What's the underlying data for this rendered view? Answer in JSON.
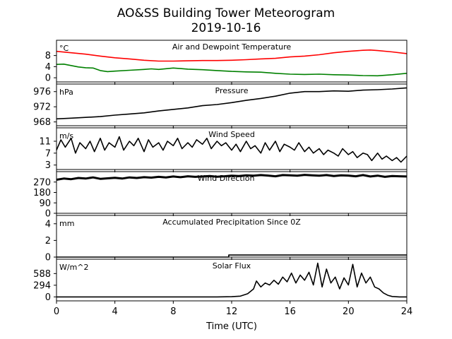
{
  "figure": {
    "title_line1": "AO&SS Building Tower Meteorogram",
    "title_line2": "2019-10-16",
    "xlabel": "Time (UTC)"
  },
  "chart_data": [
    {
      "type": "line",
      "title": "Air and Dewpoint Temperature",
      "unit": "°C",
      "ylim": [
        -1.5,
        13.5
      ],
      "yticks": [
        0,
        4,
        8
      ],
      "xlim": [
        0,
        24
      ],
      "xticks": [
        0,
        4,
        8,
        12,
        16,
        20,
        24
      ],
      "series": [
        {
          "color": "#ff0000",
          "x": [
            0,
            1,
            2,
            3,
            4,
            5,
            6,
            7,
            8,
            9,
            10,
            11,
            12,
            13,
            14,
            15,
            16,
            17,
            18,
            19,
            20,
            21,
            21.5,
            22,
            23,
            24
          ],
          "y": [
            9.5,
            9.0,
            8.5,
            7.8,
            7.2,
            6.8,
            6.3,
            6.0,
            6.0,
            6.1,
            6.2,
            6.2,
            6.3,
            6.5,
            6.8,
            7.0,
            7.5,
            7.8,
            8.3,
            9.0,
            9.5,
            9.9,
            10.0,
            9.8,
            9.3,
            8.7
          ]
        },
        {
          "color": "#008000",
          "x": [
            0,
            0.5,
            1,
            1.5,
            2,
            2.5,
            3,
            3.5,
            4,
            5,
            6,
            6.5,
            7,
            8,
            9,
            10,
            11,
            12,
            13,
            14,
            15,
            16,
            17,
            18,
            19,
            20,
            21,
            22,
            23,
            24
          ],
          "y": [
            4.8,
            4.9,
            4.4,
            3.9,
            3.6,
            3.5,
            2.6,
            2.2,
            2.4,
            2.7,
            3.0,
            3.2,
            3.0,
            3.5,
            3.1,
            2.9,
            2.6,
            2.3,
            2.1,
            2.0,
            1.6,
            1.3,
            1.2,
            1.3,
            1.1,
            1.0,
            0.8,
            0.7,
            1.1,
            1.6
          ]
        }
      ]
    },
    {
      "type": "line",
      "title": "Pressure",
      "unit": "hPa",
      "ylim": [
        967,
        978
      ],
      "yticks": [
        968,
        972,
        976
      ],
      "xlim": [
        0,
        24
      ],
      "series": [
        {
          "color": "#000000",
          "x": [
            0,
            1,
            2,
            3,
            4,
            5,
            6,
            7,
            8,
            9,
            10,
            11,
            12,
            13,
            14,
            15,
            16,
            17,
            18,
            19,
            20,
            21,
            22,
            23,
            24
          ],
          "y": [
            968.8,
            969.0,
            969.2,
            969.4,
            969.8,
            970.1,
            970.4,
            970.9,
            971.3,
            971.7,
            972.3,
            972.6,
            973.1,
            973.7,
            974.2,
            974.8,
            975.6,
            976.0,
            976.0,
            976.2,
            976.1,
            976.4,
            976.5,
            976.7,
            977.0
          ]
        }
      ]
    },
    {
      "type": "line",
      "title": "Wind Speed",
      "unit": "m/s",
      "ylim": [
        1.5,
        15.5
      ],
      "yticks": [
        3,
        7,
        11
      ],
      "xlim": [
        0,
        24
      ],
      "series": [
        {
          "color": "#000000",
          "x": [
            0,
            0.3,
            0.6,
            1,
            1.3,
            1.6,
            2,
            2.3,
            2.6,
            3,
            3.3,
            3.6,
            4,
            4.3,
            4.6,
            5,
            5.3,
            5.6,
            6,
            6.3,
            6.6,
            7,
            7.3,
            7.6,
            8,
            8.3,
            8.6,
            9,
            9.3,
            9.6,
            10,
            10.3,
            10.6,
            11,
            11.3,
            11.6,
            12,
            12.3,
            12.6,
            13,
            13.3,
            13.6,
            14,
            14.3,
            14.6,
            15,
            15.3,
            15.6,
            16,
            16.3,
            16.6,
            17,
            17.3,
            17.6,
            18,
            18.3,
            18.6,
            19,
            19.3,
            19.6,
            20,
            20.3,
            20.6,
            21,
            21.3,
            21.6,
            22,
            22.3,
            22.6,
            23,
            23.3,
            23.6,
            24
          ],
          "y": [
            8,
            11.5,
            9,
            12,
            7,
            10.5,
            8.5,
            11,
            7.5,
            12,
            8,
            10.5,
            9,
            12.5,
            8,
            11,
            9.5,
            12,
            7.5,
            11.5,
            9,
            10.5,
            8,
            11,
            9.5,
            12,
            8.5,
            10.5,
            9,
            11.5,
            10,
            12,
            8.5,
            11,
            9.5,
            10.5,
            8,
            10,
            7.5,
            11,
            8.5,
            9.5,
            7,
            10.5,
            8,
            11,
            7.5,
            10,
            9,
            8,
            10.5,
            7.5,
            9,
            7,
            8.5,
            6.5,
            8,
            7,
            6,
            8.5,
            6.5,
            7.5,
            5.5,
            7,
            6.5,
            4.5,
            7,
            5,
            6,
            4.5,
            5.5,
            4,
            6
          ]
        }
      ]
    },
    {
      "type": "line",
      "title": "Wind Direction",
      "unit": "",
      "ylim": [
        0,
        360
      ],
      "yticks": [
        0,
        90,
        180,
        270
      ],
      "xlim": [
        0,
        24
      ],
      "series": [
        {
          "color": "#000000",
          "x": [
            0,
            0.5,
            1,
            1.5,
            2,
            2.5,
            3,
            3.5,
            4,
            4.5,
            5,
            5.5,
            6,
            6.5,
            7,
            7.5,
            8,
            8.5,
            9,
            9.5,
            10,
            10.5,
            11,
            11.5,
            12,
            12.5,
            13,
            13.5,
            14,
            14.5,
            15,
            15.5,
            16,
            16.5,
            17,
            17.5,
            18,
            18.5,
            19,
            19.5,
            20,
            20.5,
            21,
            21.5,
            22,
            22.5,
            23,
            23.5,
            24
          ],
          "y": [
            290,
            300,
            295,
            305,
            300,
            310,
            298,
            302,
            306,
            300,
            310,
            305,
            312,
            308,
            315,
            310,
            318,
            312,
            320,
            315,
            318,
            322,
            316,
            320,
            325,
            322,
            328,
            325,
            330,
            326,
            320,
            330,
            328,
            325,
            332,
            328,
            325,
            330,
            322,
            328,
            326,
            320,
            330,
            318,
            325,
            315,
            322,
            320,
            318
          ]
        }
      ]
    },
    {
      "type": "line",
      "title": "Accumulated Precipitation Since 0Z",
      "unit": "mm",
      "ylim": [
        0,
        5
      ],
      "yticks": [
        0,
        2,
        4
      ],
      "xlim": [
        0,
        24
      ],
      "series": [
        {
          "color": "#000000",
          "x": [
            0,
            11.8,
            11.8,
            24
          ],
          "y": [
            0,
            0,
            0.25,
            0.25
          ]
        }
      ]
    },
    {
      "type": "line",
      "title": "Solar Flux",
      "unit": "W/m^2",
      "ylim": [
        -100,
        950
      ],
      "yticks": [
        0,
        294,
        588
      ],
      "xlim": [
        0,
        24
      ],
      "series": [
        {
          "color": "#000000",
          "x": [
            0,
            11,
            12,
            12.6,
            13.1,
            13.5,
            13.7,
            14,
            14.3,
            14.6,
            14.9,
            15.2,
            15.5,
            15.8,
            16.1,
            16.4,
            16.7,
            17,
            17.3,
            17.6,
            17.9,
            18.2,
            18.5,
            18.8,
            19.1,
            19.4,
            19.7,
            20,
            20.3,
            20.6,
            20.9,
            21.2,
            21.5,
            21.8,
            22.1,
            22.4,
            22.7,
            23,
            23.5,
            24
          ],
          "y": [
            0,
            0,
            5,
            20,
            80,
            200,
            400,
            250,
            350,
            300,
            420,
            320,
            500,
            380,
            600,
            350,
            550,
            420,
            620,
            300,
            850,
            250,
            700,
            350,
            500,
            200,
            480,
            300,
            820,
            250,
            600,
            350,
            500,
            250,
            200,
            100,
            40,
            10,
            0,
            0
          ]
        }
      ]
    }
  ]
}
